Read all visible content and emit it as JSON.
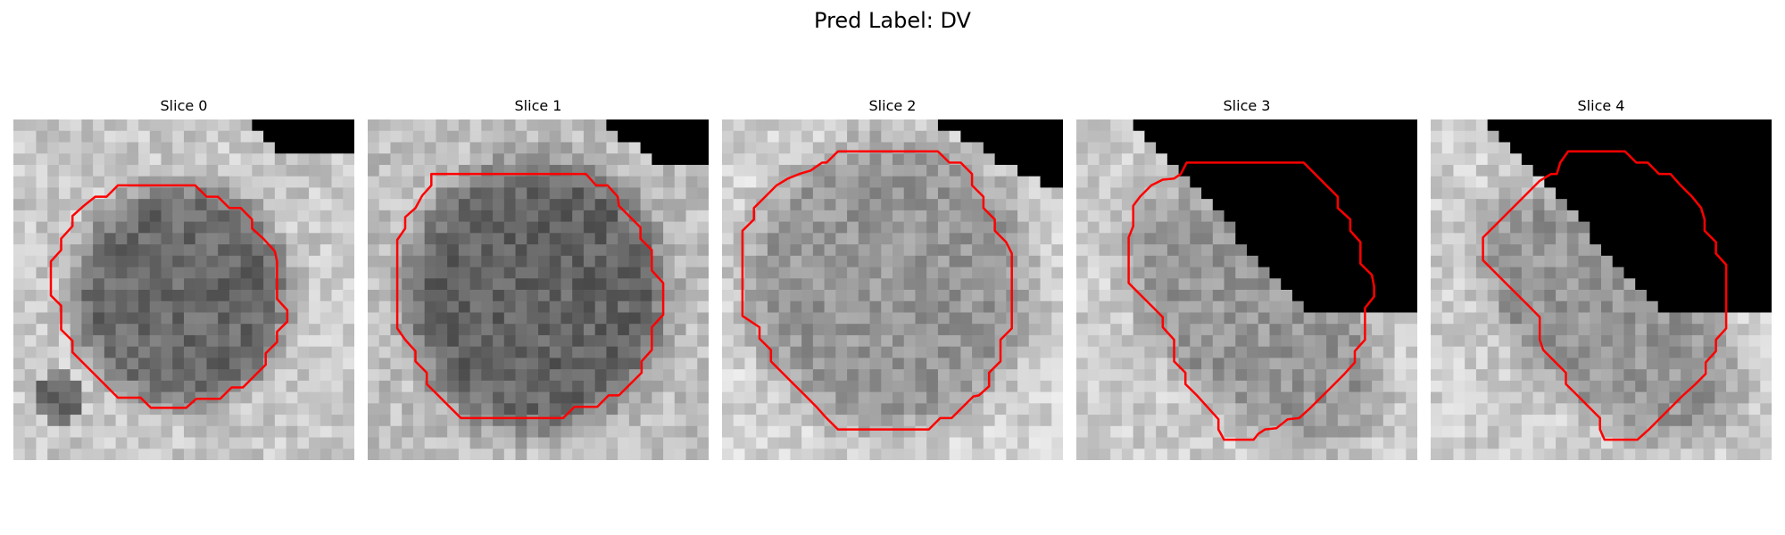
{
  "figure": {
    "title": "Pred Label: DV"
  },
  "panels": [
    {
      "title": "Slice 0"
    },
    {
      "title": "Slice 1"
    },
    {
      "title": "Slice 2"
    },
    {
      "title": "Slice 3"
    },
    {
      "title": "Slice 4"
    }
  ],
  "colors": {
    "contour": "#ff0000",
    "background": "#ffffff"
  }
}
